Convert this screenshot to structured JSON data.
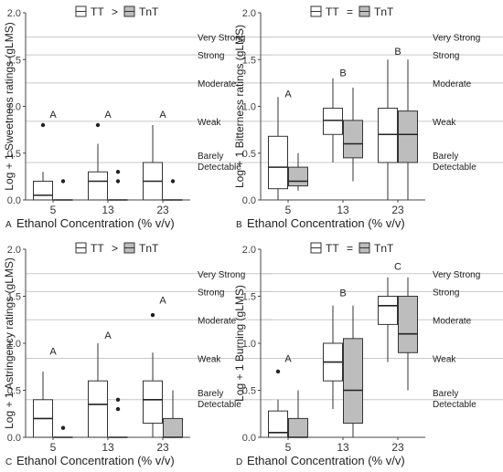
{
  "chart_data": [
    {
      "type": "box",
      "panel_letter": "A",
      "ylabel": "Log + 1 Sweetness ratings (gLMS)",
      "xlabel": "Ethanol Concentration (% v/v)",
      "categories": [
        "5",
        "13",
        "23"
      ],
      "ylim": [
        0,
        2
      ],
      "yticks": [
        "0.0",
        "0.5",
        "1.0",
        "1.5",
        "2.0"
      ],
      "legend": {
        "series1": "TT",
        "relation": ">",
        "series2": "TnT",
        "position": "top"
      },
      "intensity_labels": [
        {
          "value": 1.74,
          "lines": [
            "Very Strong"
          ]
        },
        {
          "value": 1.55,
          "lines": [
            "Strong"
          ]
        },
        {
          "value": 1.25,
          "lines": [
            "Moderate"
          ]
        },
        {
          "value": 0.84,
          "lines": [
            "Weak"
          ]
        },
        {
          "value": 0.4,
          "lines": [
            "Barely",
            "Detectable"
          ]
        }
      ],
      "sig_letters": [
        {
          "category": "5",
          "letter": "A",
          "y": 0.88
        },
        {
          "category": "13",
          "letter": "A",
          "y": 0.88
        },
        {
          "category": "23",
          "letter": "A",
          "y": 0.88
        }
      ],
      "series": [
        {
          "name": "TT",
          "color": "#ffffff",
          "boxes": [
            {
              "min": 0,
              "q1": 0,
              "median": 0.05,
              "q3": 0.2,
              "max": 0.3,
              "outliers": [
                0.8
              ]
            },
            {
              "min": 0,
              "q1": 0,
              "median": 0.2,
              "q3": 0.3,
              "max": 0.6,
              "outliers": [
                0.8
              ]
            },
            {
              "min": 0,
              "q1": 0,
              "median": 0.2,
              "q3": 0.4,
              "max": 0.8,
              "outliers": []
            }
          ]
        },
        {
          "name": "TnT",
          "color": "#bdbdbd",
          "boxes": [
            {
              "min": 0,
              "q1": 0,
              "median": 0,
              "q3": 0,
              "max": 0,
              "outliers": [
                0.2
              ]
            },
            {
              "min": 0,
              "q1": 0,
              "median": 0,
              "q3": 0,
              "max": 0,
              "outliers": [
                0.2,
                0.3
              ]
            },
            {
              "min": 0,
              "q1": 0,
              "median": 0,
              "q3": 0,
              "max": 0,
              "outliers": [
                0.2
              ]
            }
          ]
        }
      ]
    },
    {
      "type": "box",
      "panel_letter": "B",
      "ylabel": "Log + 1 Bitterness ratings (gLMS)",
      "xlabel": "Ethanol Concentration (% v/v)",
      "categories": [
        "5",
        "13",
        "23"
      ],
      "ylim": [
        0,
        2
      ],
      "yticks": [
        "0.0",
        "0.5",
        "1.0",
        "1.5",
        "2.0"
      ],
      "legend": {
        "series1": "TT",
        "relation": "=",
        "series2": "TnT",
        "position": "top"
      },
      "intensity_labels": [
        {
          "value": 1.74,
          "lines": [
            "Very Strong"
          ]
        },
        {
          "value": 1.55,
          "lines": [
            "Strong"
          ]
        },
        {
          "value": 1.25,
          "lines": [
            "Moderate"
          ]
        },
        {
          "value": 0.84,
          "lines": [
            "Weak"
          ]
        },
        {
          "value": 0.4,
          "lines": [
            "Barely",
            "Detectable"
          ]
        }
      ],
      "sig_letters": [
        {
          "category": "5",
          "letter": "A",
          "y": 1.1
        },
        {
          "category": "13",
          "letter": "B",
          "y": 1.32
        },
        {
          "category": "23",
          "letter": "B",
          "y": 1.55
        }
      ],
      "series": [
        {
          "name": "TT",
          "color": "#ffffff",
          "boxes": [
            {
              "min": 0,
              "q1": 0.12,
              "median": 0.35,
              "q3": 0.68,
              "max": 1.1,
              "outliers": []
            },
            {
              "min": 0.4,
              "q1": 0.7,
              "median": 0.85,
              "q3": 0.98,
              "max": 1.3,
              "outliers": []
            },
            {
              "min": 0,
              "q1": 0.4,
              "median": 0.7,
              "q3": 0.98,
              "max": 1.5,
              "outliers": []
            }
          ]
        },
        {
          "name": "TnT",
          "color": "#bdbdbd",
          "boxes": [
            {
              "min": 0.1,
              "q1": 0.15,
              "median": 0.2,
              "q3": 0.35,
              "max": 0.5,
              "outliers": []
            },
            {
              "min": 0.2,
              "q1": 0.45,
              "median": 0.6,
              "q3": 0.85,
              "max": 1.2,
              "outliers": []
            },
            {
              "min": 0,
              "q1": 0.4,
              "median": 0.7,
              "q3": 0.95,
              "max": 1.5,
              "outliers": []
            }
          ]
        }
      ]
    },
    {
      "type": "box",
      "panel_letter": "C",
      "ylabel": "Log + 1 Astringency ratings (gLMS)",
      "xlabel": "Ethanol Concentration (% v/v)",
      "categories": [
        "5",
        "13",
        "23"
      ],
      "ylim": [
        0,
        2
      ],
      "yticks": [
        "0.0",
        "0.5",
        "1.0",
        "1.5",
        "2.0"
      ],
      "legend": {
        "series1": "TT",
        "relation": ">",
        "series2": "TnT",
        "position": "top"
      },
      "intensity_labels": [
        {
          "value": 1.74,
          "lines": [
            "Very Strong"
          ]
        },
        {
          "value": 1.55,
          "lines": [
            "Strong"
          ]
        },
        {
          "value": 1.25,
          "lines": [
            "Moderate"
          ]
        },
        {
          "value": 0.84,
          "lines": [
            "Weak"
          ]
        },
        {
          "value": 0.4,
          "lines": [
            "Barely",
            "Detectable"
          ]
        }
      ],
      "sig_letters": [
        {
          "category": "5",
          "letter": "A",
          "y": 0.88
        },
        {
          "category": "13",
          "letter": "A",
          "y": 1.05
        },
        {
          "category": "23",
          "letter": "A",
          "y": 1.42
        }
      ],
      "series": [
        {
          "name": "TT",
          "color": "#ffffff",
          "boxes": [
            {
              "min": 0,
              "q1": 0,
              "median": 0.2,
              "q3": 0.4,
              "max": 0.7,
              "outliers": []
            },
            {
              "min": 0,
              "q1": 0,
              "median": 0.35,
              "q3": 0.6,
              "max": 1.0,
              "outliers": []
            },
            {
              "min": 0,
              "q1": 0.15,
              "median": 0.4,
              "q3": 0.6,
              "max": 0.9,
              "outliers": [
                1.3
              ]
            }
          ]
        },
        {
          "name": "TnT",
          "color": "#bdbdbd",
          "boxes": [
            {
              "min": 0,
              "q1": 0,
              "median": 0,
              "q3": 0,
              "max": 0,
              "outliers": [
                0.1
              ]
            },
            {
              "min": 0,
              "q1": 0,
              "median": 0,
              "q3": 0,
              "max": 0,
              "outliers": [
                0.3,
                0.4
              ]
            },
            {
              "min": 0,
              "q1": 0,
              "median": 0,
              "q3": 0.2,
              "max": 0.5,
              "outliers": []
            }
          ]
        }
      ]
    },
    {
      "type": "box",
      "panel_letter": "D",
      "ylabel": "Log + 1 Burning (gLMS)",
      "xlabel": "Ethanol Concentration (% v/v)",
      "categories": [
        "5",
        "13",
        "23"
      ],
      "ylim": [
        0,
        2
      ],
      "yticks": [
        "0.0",
        "0.5",
        "1.0",
        "1.5",
        "2.0"
      ],
      "legend": {
        "series1": "TT",
        "relation": "=",
        "series2": "TnT",
        "position": "top"
      },
      "intensity_labels": [
        {
          "value": 1.74,
          "lines": [
            "Very Strong"
          ]
        },
        {
          "value": 1.55,
          "lines": [
            "Strong"
          ]
        },
        {
          "value": 1.25,
          "lines": [
            "Moderate"
          ]
        },
        {
          "value": 0.84,
          "lines": [
            "Weak"
          ]
        },
        {
          "value": 0.4,
          "lines": [
            "Barely",
            "Detectable"
          ]
        }
      ],
      "sig_letters": [
        {
          "category": "5",
          "letter": "A",
          "y": 0.8
        },
        {
          "category": "13",
          "letter": "B",
          "y": 1.5
        },
        {
          "category": "23",
          "letter": "C",
          "y": 1.78
        }
      ],
      "series": [
        {
          "name": "TT",
          "color": "#ffffff",
          "boxes": [
            {
              "min": 0,
              "q1": 0,
              "median": 0.05,
              "q3": 0.28,
              "max": 0.4,
              "outliers": [
                0.7
              ]
            },
            {
              "min": 0.3,
              "q1": 0.6,
              "median": 0.8,
              "q3": 1.0,
              "max": 1.4,
              "outliers": []
            },
            {
              "min": 0.8,
              "q1": 1.2,
              "median": 1.4,
              "q3": 1.5,
              "max": 1.7,
              "outliers": []
            }
          ]
        },
        {
          "name": "TnT",
          "color": "#bdbdbd",
          "boxes": [
            {
              "min": 0,
              "q1": 0,
              "median": 0,
              "q3": 0.2,
              "max": 0.5,
              "outliers": []
            },
            {
              "min": 0,
              "q1": 0.15,
              "median": 0.5,
              "q3": 1.05,
              "max": 1.4,
              "outliers": []
            },
            {
              "min": 0.5,
              "q1": 0.9,
              "median": 1.1,
              "q3": 1.5,
              "max": 1.7,
              "outliers": []
            }
          ]
        }
      ]
    }
  ]
}
